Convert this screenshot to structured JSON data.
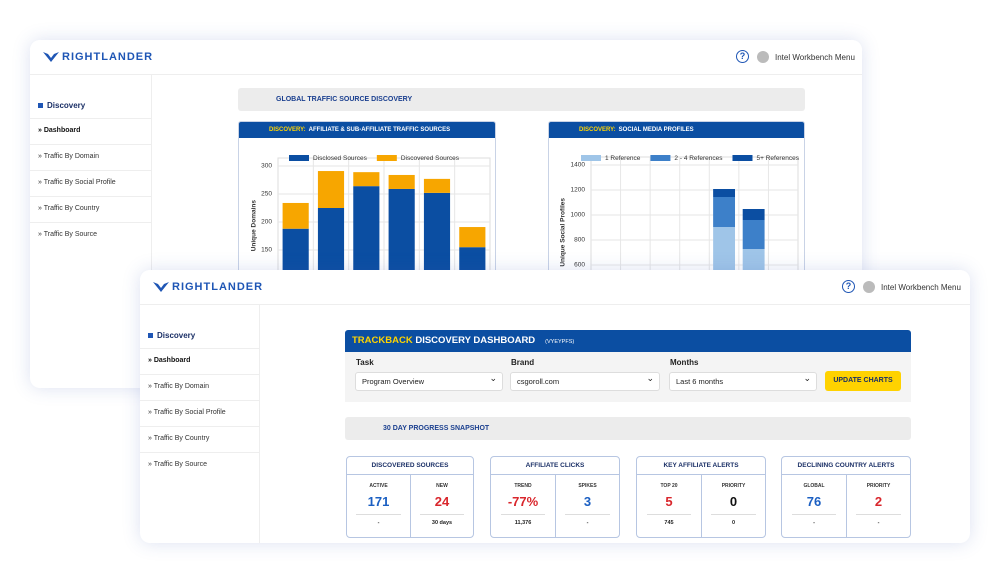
{
  "back": {
    "brand": "RIGHTLANDER",
    "help": "?",
    "user": "Intel Workbench Menu",
    "nav": {
      "section": "Discovery",
      "items": [
        "Dashboard",
        "Traffic By Domain",
        "Traffic By Social Profile",
        "Traffic By Country",
        "Traffic By Source"
      ]
    },
    "banner": "GLOBAL TRAFFIC SOURCE DISCOVERY",
    "charts": [
      {
        "type": "bar",
        "stacked": true,
        "prefix": "DISCOVERY:",
        "title": "AFFILIATE & SUB-AFFILIATE TRAFFIC SOURCES",
        "y_label": "Unique Domains",
        "categories": [
          null,
          null,
          null,
          null,
          null,
          null
        ],
        "series": [
          {
            "name": "Disclosed Sources",
            "color": "#0b4ea2",
            "values": [
              188,
              225,
              264,
              259,
              252,
              155
            ]
          },
          {
            "name": "Discovered Sources",
            "color": "#f7a600",
            "values": [
              46,
              66,
              25,
              25,
              25,
              36
            ]
          }
        ],
        "ylim": [
          0,
          300
        ],
        "yticks": [
          150,
          200,
          250,
          300
        ],
        "grid": true
      },
      {
        "type": "bar",
        "stacked": true,
        "prefix": "DISCOVERY:",
        "title": "SOCIAL MEDIA PROFILES",
        "y_label": "Unique Social Profiles",
        "categories": [
          null,
          null,
          null,
          null,
          null,
          null,
          null
        ],
        "series": [
          {
            "name": "1 Reference",
            "color": "#9fc5e8",
            "values": [
              0,
              0,
              0,
              0,
              904,
              728,
              0
            ]
          },
          {
            "name": "2 - 4 References",
            "color": "#3d80c9",
            "values": [
              0,
              0,
              0,
              0,
              240,
              232,
              0
            ]
          },
          {
            "name": "5+ References",
            "color": "#0b4ea2",
            "values": [
              0,
              0,
              0,
              0,
              64,
              88,
              0
            ]
          }
        ],
        "ylim": [
          0,
          1400
        ],
        "yticks": [
          600,
          800,
          1000,
          1200,
          1400
        ],
        "grid": true
      }
    ]
  },
  "front": {
    "brand": "RIGHTLANDER",
    "help": "?",
    "user": "Intel Workbench Menu",
    "nav": {
      "section": "Discovery",
      "items": [
        "Dashboard",
        "Traffic By Domain",
        "Traffic By Social Profile",
        "Traffic By Country",
        "Traffic By Source"
      ]
    },
    "dashboard": {
      "title_highlight": "TRACKBACK",
      "title": "DISCOVERY DASHBOARD",
      "code": "(VYEYPFS)",
      "fields": [
        {
          "label": "Task",
          "value": "Program Overview"
        },
        {
          "label": "Brand",
          "value": "csgoroll.com"
        },
        {
          "label": "Months",
          "value": "Last 6 months"
        }
      ],
      "button": "UPDATE CHARTS"
    },
    "banner": "30 DAY PROGRESS SNAPSHOT",
    "cards": [
      {
        "title": "DISCOVERED SOURCES",
        "metrics": [
          {
            "label": "ACTIVE",
            "value": 171,
            "color": "#1b5fc2",
            "sub": "-"
          },
          {
            "label": "NEW",
            "value": 24,
            "color": "#d9262c",
            "sub": "30 days"
          }
        ]
      },
      {
        "title": "AFFILIATE CLICKS",
        "metrics": [
          {
            "label": "TREND",
            "value": "-77%",
            "color": "#d9262c",
            "sub": "11,376"
          },
          {
            "label": "SPIKES",
            "value": 3,
            "color": "#1b5fc2",
            "sub": "-"
          }
        ]
      },
      {
        "title": "KEY AFFILIATE ALERTS",
        "metrics": [
          {
            "label": "TOP 20",
            "value": 5,
            "color": "#d9262c",
            "sub": 745
          },
          {
            "label": "PRIORITY",
            "value": 0,
            "color": "#111111",
            "sub": 0
          }
        ]
      },
      {
        "title": "DECLINING COUNTRY ALERTS",
        "metrics": [
          {
            "label": "GLOBAL",
            "value": 76,
            "color": "#1b5fc2",
            "sub": "-"
          },
          {
            "label": "PRIORITY",
            "value": 2,
            "color": "#d9262c",
            "sub": "-"
          }
        ]
      }
    ]
  }
}
